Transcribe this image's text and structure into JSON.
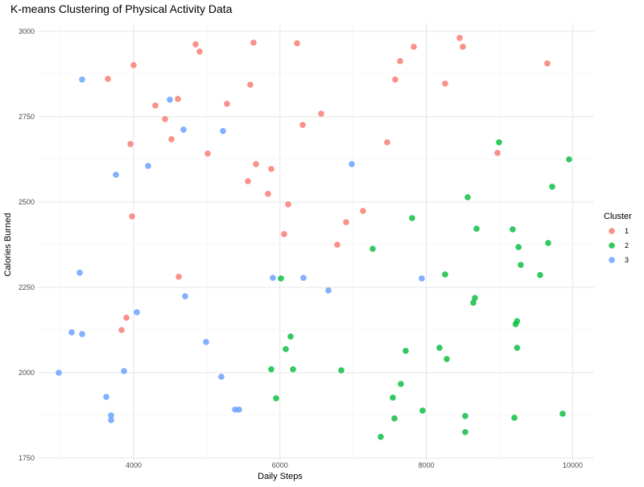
{
  "chart_data": {
    "type": "scatter",
    "title": "K-means Clustering of Physical Activity Data",
    "xlabel": "Daily Steps",
    "ylabel": "Calories Burned",
    "xlim": [
      2850,
      10300
    ],
    "ylim": [
      1725,
      3025
    ],
    "x_ticks": [
      4000,
      6000,
      8000,
      10000
    ],
    "y_ticks": [
      1750,
      2000,
      2250,
      2500,
      2750,
      3000
    ],
    "grid": true,
    "legend": {
      "title": "Cluster",
      "placement": "right"
    },
    "series": [
      {
        "name": "1",
        "color": "#F8766D",
        "points": [
          [
            3648,
            2861
          ],
          [
            4847,
            2962
          ],
          [
            4902,
            2941
          ],
          [
            5639,
            2967
          ],
          [
            6233,
            2965
          ],
          [
            4000,
            2901
          ],
          [
            4297,
            2783
          ],
          [
            4605,
            2802
          ],
          [
            4429,
            2743
          ],
          [
            4517,
            2684
          ],
          [
            3956,
            2670
          ],
          [
            5012,
            2642
          ],
          [
            5276,
            2788
          ],
          [
            5595,
            2844
          ],
          [
            5672,
            2611
          ],
          [
            5881,
            2597
          ],
          [
            5562,
            2561
          ],
          [
            5837,
            2524
          ],
          [
            6112,
            2493
          ],
          [
            3978,
            2458
          ],
          [
            6057,
            2406
          ],
          [
            6904,
            2441
          ],
          [
            7135,
            2474
          ],
          [
            6783,
            2375
          ],
          [
            4616,
            2281
          ],
          [
            3901,
            2161
          ],
          [
            3835,
            2125
          ],
          [
            6310,
            2726
          ],
          [
            6563,
            2759
          ],
          [
            7465,
            2675
          ],
          [
            7575,
            2859
          ],
          [
            7641,
            2913
          ],
          [
            7828,
            2955
          ],
          [
            8257,
            2847
          ],
          [
            8455,
            2981
          ],
          [
            8499,
            2955
          ],
          [
            8972,
            2644
          ],
          [
            9654,
            2906
          ]
        ]
      },
      {
        "name": "2",
        "color": "#00BA38",
        "points": [
          [
            8994,
            2675
          ],
          [
            9951,
            2625
          ],
          [
            9720,
            2545
          ],
          [
            8565,
            2514
          ],
          [
            7806,
            2453
          ],
          [
            8686,
            2422
          ],
          [
            9180,
            2420
          ],
          [
            9260,
            2368
          ],
          [
            9665,
            2380
          ],
          [
            9290,
            2316
          ],
          [
            7267,
            2363
          ],
          [
            8257,
            2288
          ],
          [
            9555,
            2286
          ],
          [
            6013,
            2276
          ],
          [
            8664,
            2219
          ],
          [
            8642,
            2205
          ],
          [
            9240,
            2151
          ],
          [
            9220,
            2142
          ],
          [
            6145,
            2106
          ],
          [
            6079,
            2069
          ],
          [
            7718,
            2064
          ],
          [
            8180,
            2073
          ],
          [
            9240,
            2073
          ],
          [
            8279,
            2040
          ],
          [
            5881,
            2010
          ],
          [
            6178,
            2010
          ],
          [
            6838,
            2007
          ],
          [
            7652,
            1967
          ],
          [
            5947,
            1925
          ],
          [
            7542,
            1927
          ],
          [
            7949,
            1889
          ],
          [
            7564,
            1866
          ],
          [
            8532,
            1873
          ],
          [
            9203,
            1868
          ],
          [
            9863,
            1880
          ],
          [
            8532,
            1826
          ],
          [
            7377,
            1812
          ]
        ]
      },
      {
        "name": "3",
        "color": "#619CFF",
        "points": [
          [
            3296,
            2859
          ],
          [
            4495,
            2800
          ],
          [
            4682,
            2712
          ],
          [
            5221,
            2708
          ],
          [
            3758,
            2580
          ],
          [
            4198,
            2606
          ],
          [
            6981,
            2611
          ],
          [
            3263,
            2293
          ],
          [
            4704,
            2224
          ],
          [
            5903,
            2278
          ],
          [
            6321,
            2278
          ],
          [
            6662,
            2241
          ],
          [
            7938,
            2276
          ],
          [
            4044,
            2177
          ],
          [
            3153,
            2118
          ],
          [
            3296,
            2113
          ],
          [
            4990,
            2090
          ],
          [
            2977,
            2000
          ],
          [
            3868,
            2005
          ],
          [
            5199,
            1988
          ],
          [
            3626,
            1929
          ],
          [
            3692,
            1875
          ],
          [
            3692,
            1861
          ],
          [
            5386,
            1892
          ],
          [
            5441,
            1892
          ]
        ]
      }
    ]
  }
}
